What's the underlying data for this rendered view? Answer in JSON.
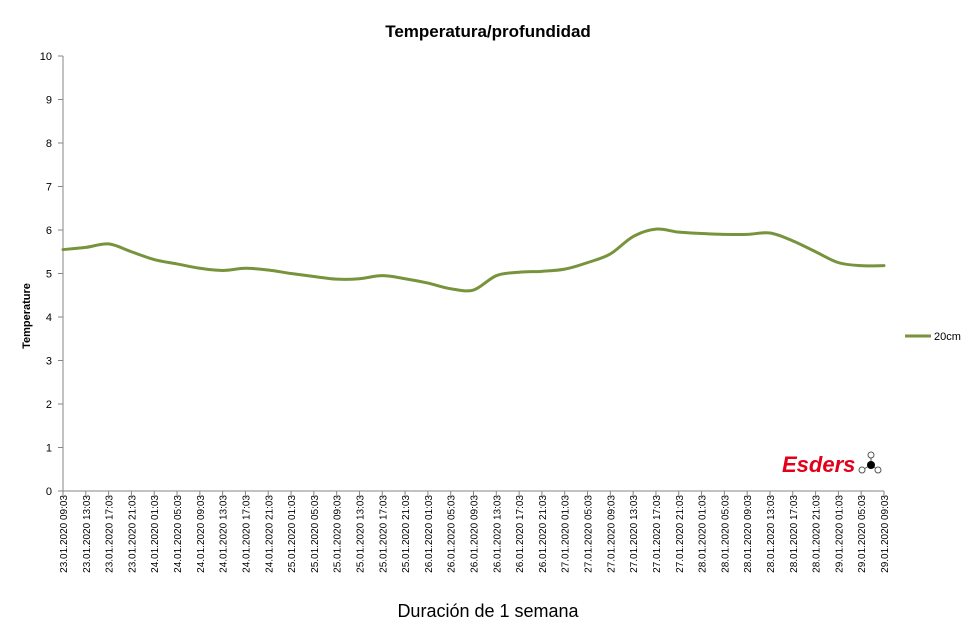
{
  "chart_data": {
    "type": "line",
    "title": "Temperatura/profundidad",
    "xlabel": "Duración de 1 semana",
    "ylabel": "Temperature",
    "ylim": [
      0,
      10
    ],
    "yticks": [
      0,
      1,
      2,
      3,
      4,
      5,
      6,
      7,
      8,
      9,
      10
    ],
    "grid": false,
    "legend_position": "right",
    "categories": [
      "23.01.2020 09:03",
      "23.01.2020 13:03",
      "23.01.2020 17:03",
      "23.01.2020 21:03",
      "24.01.2020 01:03",
      "24.01.2020 05:03",
      "24.01.2020 09:03",
      "24.01.2020 13:03",
      "24.01.2020 17:03",
      "24.01.2020 21:03",
      "25.01.2020 01:03",
      "25.01.2020 05:03",
      "25.01.2020 09:03",
      "25.01.2020 13:03",
      "25.01.2020 17:03",
      "25.01.2020 21:03",
      "26.01.2020 01:03",
      "26.01.2020 05:03",
      "26.01.2020 09:03",
      "26.01.2020 13:03",
      "26.01.2020 17:03",
      "26.01.2020 21:03",
      "27.01.2020 01:03",
      "27.01.2020 05:03",
      "27.01.2020 09:03",
      "27.01.2020 13:03",
      "27.01.2020 17:03",
      "27.01.2020 21:03",
      "28.01.2020 01:03",
      "28.01.2020 05:03",
      "28.01.2020 09:03",
      "28.01.2020 13:03",
      "28.01.2020 17:03",
      "28.01.2020 21:03",
      "29.01.2020 01:03",
      "29.01.2020 05:03",
      "29.01.2020 09:03"
    ],
    "series": [
      {
        "name": "20cm",
        "color": "#77933c",
        "values": [
          5.55,
          5.6,
          5.68,
          5.5,
          5.32,
          5.22,
          5.12,
          5.07,
          5.12,
          5.08,
          5.0,
          4.93,
          4.87,
          4.88,
          4.95,
          4.88,
          4.78,
          4.65,
          4.62,
          4.95,
          5.03,
          5.05,
          5.1,
          5.25,
          5.45,
          5.85,
          6.02,
          5.95,
          5.92,
          5.9,
          5.9,
          5.93,
          5.75,
          5.5,
          5.25,
          5.18,
          5.18
        ]
      }
    ]
  },
  "logo": {
    "text": "Esders"
  }
}
